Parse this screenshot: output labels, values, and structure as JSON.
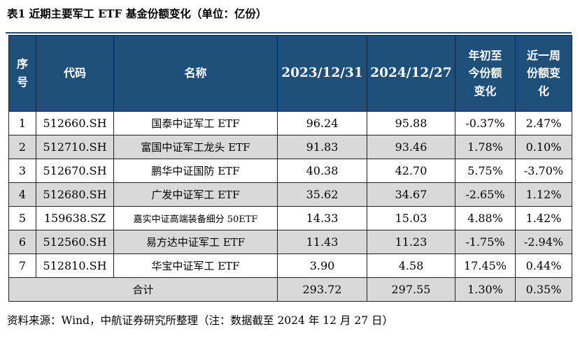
{
  "title": "表1  近期主要军工 ETF 基金份额变化（单位：亿份）",
  "headers": [
    {
      "lines": [
        "序",
        "号"
      ]
    },
    {
      "lines": [
        "代码"
      ]
    },
    {
      "lines": [
        "名称"
      ]
    },
    {
      "lines": [
        "2023/12/31"
      ]
    },
    {
      "lines": [
        "2024/12/27"
      ]
    },
    {
      "lines": [
        "年初至",
        "今份额",
        "变化"
      ]
    },
    {
      "lines": [
        "近一周",
        "份额变",
        "化"
      ]
    }
  ],
  "rows": [
    {
      "no": "1",
      "code": "512660.SH",
      "name": "国泰中证军工 ETF",
      "v2023": "96.24",
      "v2024": "95.88",
      "ytd": "-0.37%",
      "week": "2.47%"
    },
    {
      "no": "2",
      "code": "512710.SH",
      "name": "富国中证军工龙头 ETF",
      "v2023": "91.83",
      "v2024": "93.46",
      "ytd": "1.78%",
      "week": "0.10%"
    },
    {
      "no": "3",
      "code": "512670.SH",
      "name": "鹏华中证国防 ETF",
      "v2023": "40.38",
      "v2024": "42.70",
      "ytd": "5.75%",
      "week": "-3.70%"
    },
    {
      "no": "4",
      "code": "512680.SH",
      "name": "广发中证军工 ETF",
      "v2023": "35.62",
      "v2024": "34.67",
      "ytd": "-2.65%",
      "week": "1.12%"
    },
    {
      "no": "5",
      "code": "159638.SZ",
      "name": "嘉实中证高端装备细分 50ETF",
      "v2023": "14.33",
      "v2024": "15.03",
      "ytd": "4.88%",
      "week": "1.42%"
    },
    {
      "no": "6",
      "code": "512560.SH",
      "name": "易方达中证军工 ETF",
      "v2023": "11.43",
      "v2024": "11.23",
      "ytd": "-1.75%",
      "week": "-2.94%"
    },
    {
      "no": "7",
      "code": "512810.SH",
      "name": "华宝中证军工 ETF",
      "v2023": "3.90",
      "v2024": "4.58",
      "ytd": "17.45%",
      "week": "0.44%"
    }
  ],
  "total": {
    "label": "合计",
    "v2023": "293.72",
    "v2024": "297.55",
    "ytd": "1.30%",
    "week": "0.35%"
  },
  "source": "资料来源：Wind，中航证券研究所整理（注：数据截至 2024 年 12 月 27 日）",
  "colors": {
    "header_bg": "#1f4e79",
    "header_text": "#ffffff",
    "alt_row_bg": "#d9d9d9"
  }
}
